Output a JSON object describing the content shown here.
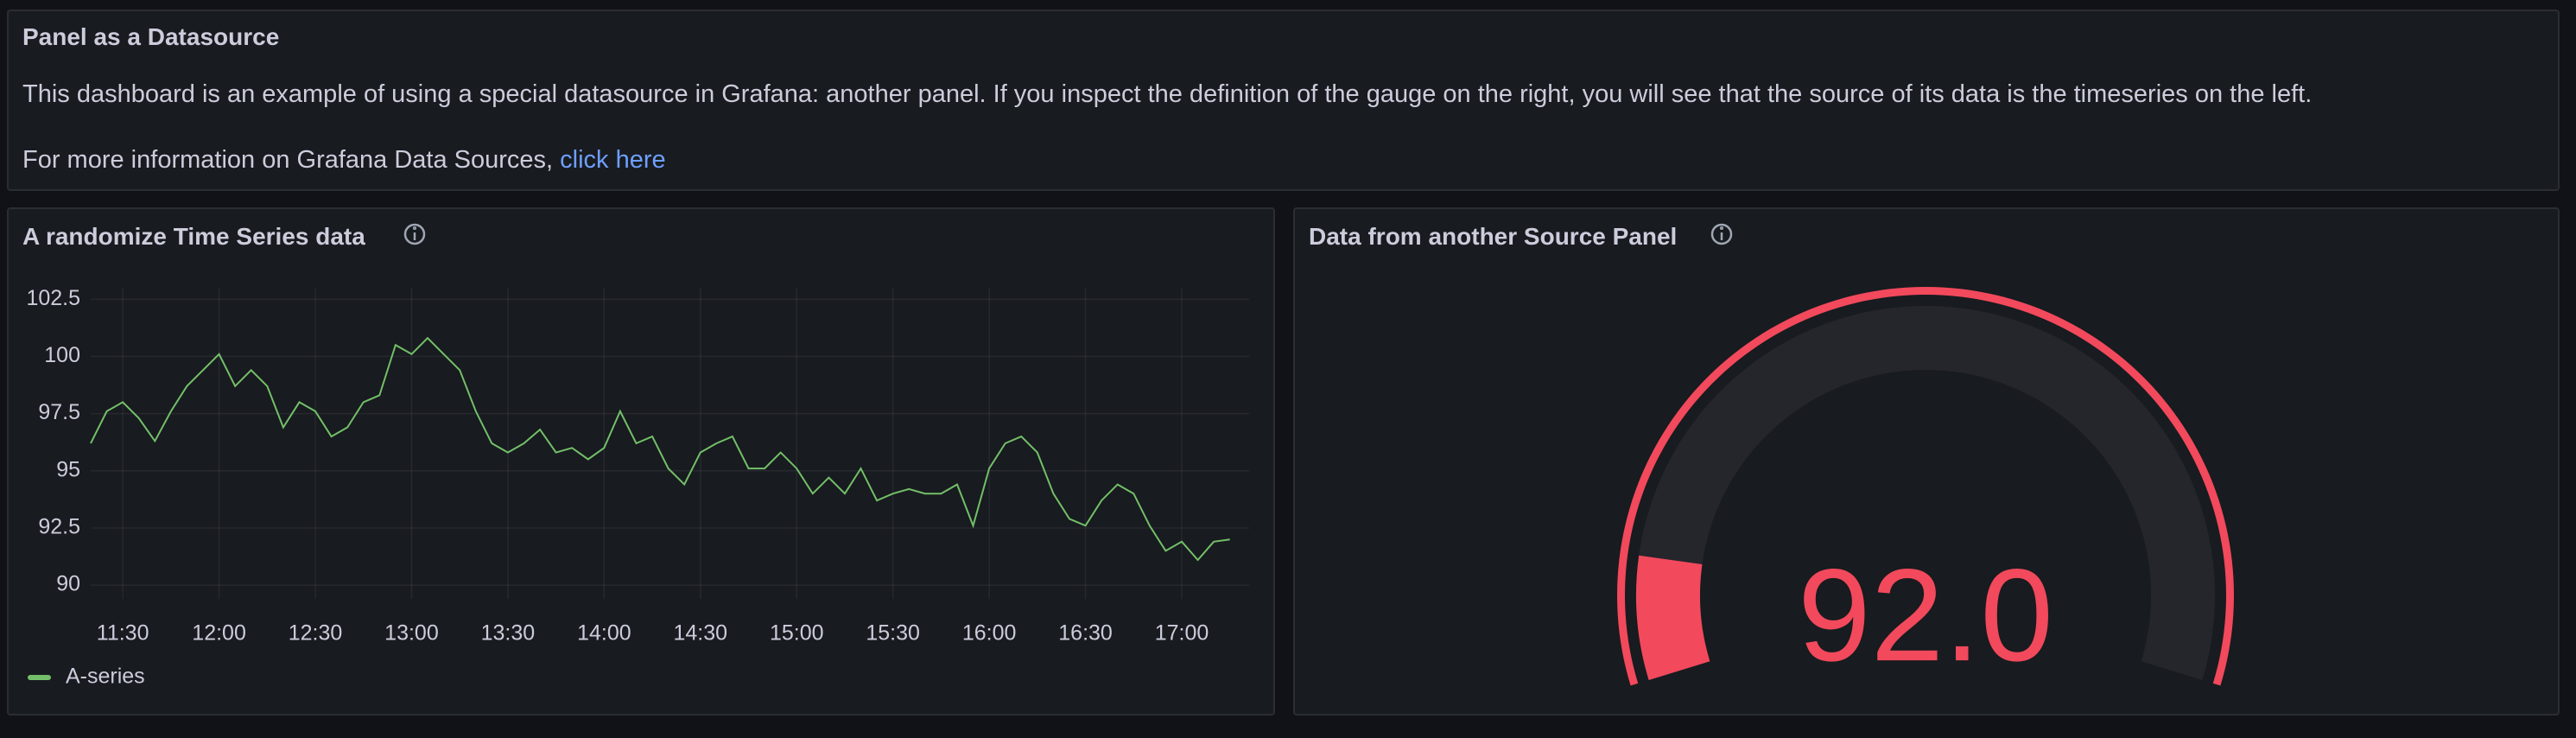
{
  "text_panel": {
    "title": "Panel as a Datasource",
    "paragraph": "This dashboard is an example of using a special datasource in Grafana: another panel. If you inspect the definition of the gauge on the right, you will see that the source of its data is the timeseries on the left.",
    "more_info": "For more information on Grafana Data Sources,",
    "link": "click here"
  },
  "timeseries_panel": {
    "title": "A randomize Time Series data",
    "chart_data": {
      "type": "line",
      "x": [
        680,
        685,
        690,
        695,
        700,
        705,
        710,
        715,
        720,
        725,
        730,
        735,
        740,
        745,
        750,
        755,
        760,
        765,
        770,
        775,
        780,
        785,
        790,
        795,
        800,
        805,
        810,
        815,
        820,
        825,
        830,
        835,
        840,
        845,
        850,
        855,
        860,
        865,
        870,
        875,
        880,
        885,
        890,
        895,
        900,
        905,
        910,
        915,
        920,
        925,
        930,
        935,
        940,
        945,
        950,
        955,
        960,
        965,
        970,
        975,
        980,
        985,
        990,
        995,
        1000,
        1005,
        1010,
        1015,
        1020,
        1025,
        1030,
        1035
      ],
      "series": [
        {
          "name": "A-series",
          "color": "#73bf69",
          "values": [
            96.2,
            97.6,
            98.0,
            97.3,
            96.3,
            97.6,
            98.7,
            99.4,
            100.1,
            98.7,
            99.4,
            98.7,
            96.9,
            98.0,
            97.6,
            96.5,
            96.9,
            98.0,
            98.3,
            100.5,
            100.1,
            100.8,
            100.1,
            99.4,
            97.6,
            96.2,
            95.8,
            96.2,
            96.8,
            95.8,
            96.0,
            95.5,
            96.0,
            97.6,
            96.2,
            96.5,
            95.1,
            94.4,
            95.8,
            96.2,
            96.5,
            95.1,
            95.1,
            95.8,
            95.1,
            94.0,
            94.7,
            94.0,
            95.1,
            93.7,
            94.0,
            94.2,
            94.0,
            94.0,
            94.4,
            92.6,
            95.1,
            96.2,
            96.5,
            95.8,
            94.0,
            92.9,
            92.6,
            93.7,
            94.4,
            94.0,
            92.6,
            91.5,
            91.9,
            91.1,
            91.9,
            92.0
          ]
        }
      ],
      "xlim": [
        680,
        1041
      ],
      "xticks": [
        {
          "value": 690,
          "label": "11:30"
        },
        {
          "value": 720,
          "label": "12:00"
        },
        {
          "value": 750,
          "label": "12:30"
        },
        {
          "value": 780,
          "label": "13:00"
        },
        {
          "value": 810,
          "label": "13:30"
        },
        {
          "value": 840,
          "label": "14:00"
        },
        {
          "value": 870,
          "label": "14:30"
        },
        {
          "value": 900,
          "label": "15:00"
        },
        {
          "value": 930,
          "label": "15:30"
        },
        {
          "value": 960,
          "label": "16:00"
        },
        {
          "value": 990,
          "label": "16:30"
        },
        {
          "value": 1020,
          "label": "17:00"
        }
      ],
      "ylim": [
        89.4,
        103
      ],
      "yticks": [
        90,
        92.5,
        95,
        97.5,
        100,
        102.5
      ],
      "grid": true,
      "legend": "bottom-left"
    }
  },
  "gauge_panel": {
    "title": "Data from another Source Panel",
    "chart_data": {
      "type": "gauge",
      "values": [
        92
      ],
      "value_labels": [
        "92.0"
      ],
      "min": 90.8,
      "max": 101.1,
      "color": "#f2495c"
    }
  }
}
